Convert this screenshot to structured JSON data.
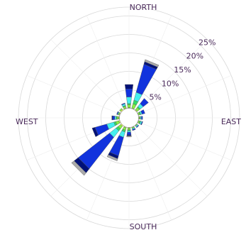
{
  "chart_data": {
    "type": "windrose",
    "directions": [
      "N",
      "NNE",
      "NE",
      "ENE",
      "E",
      "ESE",
      "SE",
      "SSE",
      "S",
      "SSW",
      "SW",
      "WSW",
      "W",
      "WNW",
      "NW",
      "NNW"
    ],
    "direction_labels": {
      "north": "NORTH",
      "east": "EAST",
      "south": "SOUTH",
      "west": "WEST"
    },
    "radial_ticks": [
      {
        "value": 5,
        "label": "5%"
      },
      {
        "value": 10,
        "label": "10%"
      },
      {
        "value": 15,
        "label": "15%"
      },
      {
        "value": 20,
        "label": "20%"
      },
      {
        "value": 25,
        "label": "25%"
      }
    ],
    "rlim": [
      0,
      30
    ],
    "calm_radius_pct": 2.6,
    "bin_colors": [
      "#ffff66",
      "#88ee44",
      "#33dd66",
      "#44eeee",
      "#1133dd",
      "#001177",
      "#aaaaaa"
    ],
    "sectors": [
      {
        "dir": "N",
        "values": [
          0.2,
          0.8,
          0.3,
          1.8,
          2.2,
          1.2,
          0
        ]
      },
      {
        "dir": "NNE",
        "values": [
          0.2,
          1.2,
          1.0,
          2.2,
          7.9,
          0.7,
          0.6
        ]
      },
      {
        "dir": "NE",
        "values": [
          0.2,
          0.8,
          0.3,
          1.0,
          1.8,
          0,
          0
        ]
      },
      {
        "dir": "ENE",
        "values": [
          0.1,
          0.4,
          0.2,
          0.4,
          0.8,
          0,
          0
        ]
      },
      {
        "dir": "E",
        "values": [
          0.1,
          0.3,
          0.1,
          0.3,
          0.3,
          0,
          0
        ]
      },
      {
        "dir": "ESE",
        "values": [
          0.1,
          0.4,
          0.2,
          0.4,
          0.2,
          0,
          0
        ]
      },
      {
        "dir": "SE",
        "values": [
          0.1,
          0.2,
          0,
          0.3,
          0.2,
          0,
          0
        ]
      },
      {
        "dir": "SSE",
        "values": [
          0.1,
          0.3,
          0,
          0.3,
          0.3,
          0,
          0
        ]
      },
      {
        "dir": "S",
        "values": [
          0.2,
          0.5,
          0.2,
          0.4,
          0.7,
          0.3,
          0.3
        ]
      },
      {
        "dir": "SSW",
        "values": [
          0.2,
          0.7,
          0.5,
          1.5,
          5.2,
          0.8,
          0.6
        ]
      },
      {
        "dir": "SW",
        "values": [
          0.3,
          0.9,
          0.7,
          2.2,
          10.8,
          1.4,
          0.9
        ]
      },
      {
        "dir": "WSW",
        "values": [
          0.3,
          0.9,
          0.5,
          2.0,
          3.3,
          0.8,
          0
        ]
      },
      {
        "dir": "W",
        "values": [
          0.2,
          0.5,
          0.2,
          0.4,
          0.6,
          0.2,
          0
        ]
      },
      {
        "dir": "WNW",
        "values": [
          0.2,
          0.3,
          0,
          0.2,
          0.2,
          0,
          0
        ]
      },
      {
        "dir": "NW",
        "values": [
          0.3,
          0.4,
          0,
          0,
          0,
          0,
          0
        ]
      },
      {
        "dir": "NNW",
        "values": [
          0.2,
          0.5,
          0.2,
          0.5,
          0.2,
          0,
          0
        ]
      }
    ]
  }
}
